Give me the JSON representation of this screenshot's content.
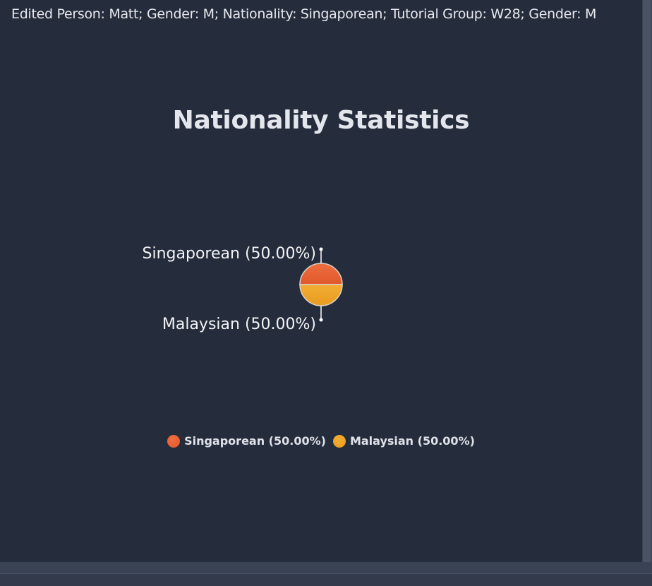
{
  "status": {
    "message": "Edited Person: Matt; Gender: M; Nationality: Singaporean; Tutorial Group: W28; Gender: M"
  },
  "chart_data": {
    "type": "pie",
    "title": "Nationality Statistics",
    "slices": [
      {
        "label": "Singaporean (50.00%)",
        "value": 50.0,
        "color": "#e0582c",
        "color_light": "#ef6e3f"
      },
      {
        "label": "Malaysian (50.00%)",
        "value": 50.0,
        "color": "#e89b20",
        "color_light": "#f2ad33"
      }
    ],
    "legend": {
      "placement": "bottom",
      "items": [
        "Singaporean (50.00%)",
        "Malaysian (50.00%)"
      ]
    }
  },
  "colors": {
    "panel_background": "#252c3b",
    "text": "#e3e6ec"
  }
}
